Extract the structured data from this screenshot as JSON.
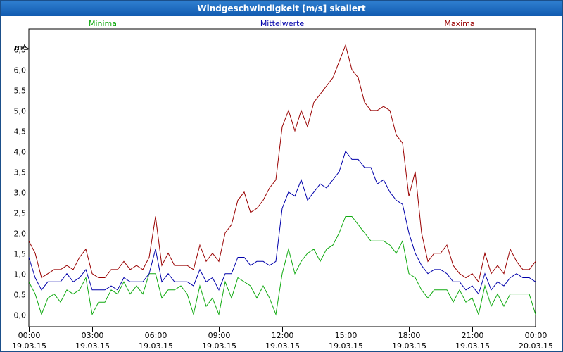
{
  "window": {
    "title": "Windgeschwindigkeit [m/s] skaliert"
  },
  "colors": {
    "min": "#11aa11",
    "mean": "#0000aa",
    "max": "#990000",
    "title_bg": "#1a66bf"
  },
  "chart_data": {
    "type": "line",
    "title": "Windgeschwindigkeit [m/s] skaliert",
    "ylabel": "m/s",
    "xlabel": "",
    "ylim": [
      -0.3,
      7.0
    ],
    "yticks": [
      "0,0",
      "0,5",
      "1,0",
      "1,5",
      "2,0",
      "2,5",
      "3,0",
      "3,5",
      "4,0",
      "4,5",
      "5,0",
      "5,5",
      "6,0",
      "6,5"
    ],
    "xlim_hours": [
      0,
      24
    ],
    "xticks": [
      {
        "time": "00:00",
        "date": "19.03.15"
      },
      {
        "time": "03:00",
        "date": "19.03.15"
      },
      {
        "time": "06:00",
        "date": "19.03.15"
      },
      {
        "time": "09:00",
        "date": "19.03.15"
      },
      {
        "time": "12:00",
        "date": "19.03.15"
      },
      {
        "time": "15:00",
        "date": "19.03.15"
      },
      {
        "time": "18:00",
        "date": "19.03.15"
      },
      {
        "time": "21:00",
        "date": "19.03.15"
      },
      {
        "time": "00:00",
        "date": "20.03.15"
      }
    ],
    "grid": true,
    "series": [
      {
        "name": "Minima",
        "key": "min",
        "points": [
          [
            0.0,
            0.8
          ],
          [
            0.3,
            0.5
          ],
          [
            0.6,
            0.0
          ],
          [
            0.9,
            0.4
          ],
          [
            1.2,
            0.5
          ],
          [
            1.5,
            0.3
          ],
          [
            1.8,
            0.6
          ],
          [
            2.1,
            0.5
          ],
          [
            2.4,
            0.6
          ],
          [
            2.7,
            0.9
          ],
          [
            3.0,
            0.0
          ],
          [
            3.3,
            0.3
          ],
          [
            3.6,
            0.3
          ],
          [
            3.9,
            0.6
          ],
          [
            4.2,
            0.5
          ],
          [
            4.5,
            0.8
          ],
          [
            4.8,
            0.5
          ],
          [
            5.1,
            0.7
          ],
          [
            5.4,
            0.5
          ],
          [
            5.7,
            1.0
          ],
          [
            6.0,
            1.0
          ],
          [
            6.3,
            0.4
          ],
          [
            6.6,
            0.6
          ],
          [
            6.9,
            0.6
          ],
          [
            7.2,
            0.7
          ],
          [
            7.5,
            0.5
          ],
          [
            7.8,
            0.0
          ],
          [
            8.1,
            0.7
          ],
          [
            8.4,
            0.2
          ],
          [
            8.7,
            0.4
          ],
          [
            9.0,
            0.0
          ],
          [
            9.3,
            0.8
          ],
          [
            9.6,
            0.4
          ],
          [
            9.9,
            0.9
          ],
          [
            10.2,
            0.8
          ],
          [
            10.5,
            0.7
          ],
          [
            10.8,
            0.4
          ],
          [
            11.1,
            0.7
          ],
          [
            11.4,
            0.4
          ],
          [
            11.7,
            0.0
          ],
          [
            12.0,
            1.0
          ],
          [
            12.3,
            1.6
          ],
          [
            12.6,
            1.0
          ],
          [
            12.9,
            1.3
          ],
          [
            13.2,
            1.5
          ],
          [
            13.5,
            1.6
          ],
          [
            13.8,
            1.3
          ],
          [
            14.1,
            1.6
          ],
          [
            14.4,
            1.7
          ],
          [
            14.7,
            2.0
          ],
          [
            15.0,
            2.4
          ],
          [
            15.3,
            2.4
          ],
          [
            15.6,
            2.2
          ],
          [
            15.9,
            2.0
          ],
          [
            16.2,
            1.8
          ],
          [
            16.5,
            1.8
          ],
          [
            16.8,
            1.8
          ],
          [
            17.1,
            1.7
          ],
          [
            17.4,
            1.5
          ],
          [
            17.7,
            1.8
          ],
          [
            18.0,
            1.0
          ],
          [
            18.3,
            0.9
          ],
          [
            18.6,
            0.6
          ],
          [
            18.9,
            0.4
          ],
          [
            19.2,
            0.6
          ],
          [
            19.5,
            0.6
          ],
          [
            19.8,
            0.6
          ],
          [
            20.1,
            0.3
          ],
          [
            20.4,
            0.6
          ],
          [
            20.7,
            0.3
          ],
          [
            21.0,
            0.4
          ],
          [
            21.3,
            0.0
          ],
          [
            21.6,
            0.7
          ],
          [
            21.9,
            0.2
          ],
          [
            22.2,
            0.5
          ],
          [
            22.5,
            0.2
          ],
          [
            22.8,
            0.5
          ],
          [
            23.1,
            0.5
          ],
          [
            23.4,
            0.5
          ],
          [
            23.7,
            0.5
          ],
          [
            24.0,
            0.0
          ]
        ]
      },
      {
        "name": "Mittelwerte",
        "key": "mean",
        "points": [
          [
            0.0,
            1.4
          ],
          [
            0.3,
            0.9
          ],
          [
            0.6,
            0.6
          ],
          [
            0.9,
            0.8
          ],
          [
            1.2,
            0.8
          ],
          [
            1.5,
            0.8
          ],
          [
            1.8,
            1.0
          ],
          [
            2.1,
            0.8
          ],
          [
            2.4,
            0.9
          ],
          [
            2.7,
            1.1
          ],
          [
            3.0,
            0.6
          ],
          [
            3.3,
            0.6
          ],
          [
            3.6,
            0.6
          ],
          [
            3.9,
            0.7
          ],
          [
            4.2,
            0.6
          ],
          [
            4.5,
            0.9
          ],
          [
            4.8,
            0.8
          ],
          [
            5.1,
            0.8
          ],
          [
            5.4,
            0.8
          ],
          [
            5.7,
            1.0
          ],
          [
            6.0,
            1.6
          ],
          [
            6.3,
            0.8
          ],
          [
            6.6,
            1.0
          ],
          [
            6.9,
            0.8
          ],
          [
            7.2,
            0.8
          ],
          [
            7.5,
            0.8
          ],
          [
            7.8,
            0.7
          ],
          [
            8.1,
            1.1
          ],
          [
            8.4,
            0.8
          ],
          [
            8.7,
            0.9
          ],
          [
            9.0,
            0.6
          ],
          [
            9.3,
            1.0
          ],
          [
            9.6,
            1.0
          ],
          [
            9.9,
            1.4
          ],
          [
            10.2,
            1.4
          ],
          [
            10.5,
            1.2
          ],
          [
            10.8,
            1.3
          ],
          [
            11.1,
            1.3
          ],
          [
            11.4,
            1.2
          ],
          [
            11.7,
            1.3
          ],
          [
            12.0,
            2.6
          ],
          [
            12.3,
            3.0
          ],
          [
            12.6,
            2.9
          ],
          [
            12.9,
            3.3
          ],
          [
            13.2,
            2.8
          ],
          [
            13.5,
            3.0
          ],
          [
            13.8,
            3.2
          ],
          [
            14.1,
            3.1
          ],
          [
            14.4,
            3.3
          ],
          [
            14.7,
            3.5
          ],
          [
            15.0,
            4.0
          ],
          [
            15.3,
            3.8
          ],
          [
            15.6,
            3.8
          ],
          [
            15.9,
            3.6
          ],
          [
            16.2,
            3.6
          ],
          [
            16.5,
            3.2
          ],
          [
            16.8,
            3.3
          ],
          [
            17.1,
            3.0
          ],
          [
            17.4,
            2.8
          ],
          [
            17.7,
            2.7
          ],
          [
            18.0,
            2.0
          ],
          [
            18.3,
            1.5
          ],
          [
            18.6,
            1.2
          ],
          [
            18.9,
            1.0
          ],
          [
            19.2,
            1.1
          ],
          [
            19.5,
            1.1
          ],
          [
            19.8,
            1.0
          ],
          [
            20.1,
            0.8
          ],
          [
            20.4,
            0.8
          ],
          [
            20.7,
            0.6
          ],
          [
            21.0,
            0.7
          ],
          [
            21.3,
            0.5
          ],
          [
            21.6,
            1.0
          ],
          [
            21.9,
            0.6
          ],
          [
            22.2,
            0.8
          ],
          [
            22.5,
            0.7
          ],
          [
            22.8,
            0.9
          ],
          [
            23.1,
            1.0
          ],
          [
            23.4,
            0.9
          ],
          [
            23.7,
            0.9
          ],
          [
            24.0,
            0.8
          ]
        ]
      },
      {
        "name": "Maxima",
        "key": "max",
        "points": [
          [
            0.0,
            1.8
          ],
          [
            0.3,
            1.5
          ],
          [
            0.6,
            0.9
          ],
          [
            0.9,
            1.0
          ],
          [
            1.2,
            1.1
          ],
          [
            1.5,
            1.1
          ],
          [
            1.8,
            1.2
          ],
          [
            2.1,
            1.1
          ],
          [
            2.4,
            1.4
          ],
          [
            2.7,
            1.6
          ],
          [
            3.0,
            1.0
          ],
          [
            3.3,
            0.9
          ],
          [
            3.6,
            0.9
          ],
          [
            3.9,
            1.1
          ],
          [
            4.2,
            1.1
          ],
          [
            4.5,
            1.3
          ],
          [
            4.8,
            1.1
          ],
          [
            5.1,
            1.2
          ],
          [
            5.4,
            1.1
          ],
          [
            5.7,
            1.4
          ],
          [
            6.0,
            2.4
          ],
          [
            6.3,
            1.2
          ],
          [
            6.6,
            1.5
          ],
          [
            6.9,
            1.2
          ],
          [
            7.2,
            1.2
          ],
          [
            7.5,
            1.2
          ],
          [
            7.8,
            1.1
          ],
          [
            8.1,
            1.7
          ],
          [
            8.4,
            1.3
          ],
          [
            8.7,
            1.5
          ],
          [
            9.0,
            1.3
          ],
          [
            9.3,
            2.0
          ],
          [
            9.6,
            2.2
          ],
          [
            9.9,
            2.8
          ],
          [
            10.2,
            3.0
          ],
          [
            10.5,
            2.5
          ],
          [
            10.8,
            2.6
          ],
          [
            11.1,
            2.8
          ],
          [
            11.4,
            3.1
          ],
          [
            11.7,
            3.3
          ],
          [
            12.0,
            4.6
          ],
          [
            12.3,
            5.0
          ],
          [
            12.6,
            4.5
          ],
          [
            12.9,
            5.0
          ],
          [
            13.2,
            4.6
          ],
          [
            13.5,
            5.2
          ],
          [
            13.8,
            5.4
          ],
          [
            14.1,
            5.6
          ],
          [
            14.4,
            5.8
          ],
          [
            14.7,
            6.2
          ],
          [
            15.0,
            6.6
          ],
          [
            15.3,
            6.0
          ],
          [
            15.6,
            5.8
          ],
          [
            15.9,
            5.2
          ],
          [
            16.2,
            5.0
          ],
          [
            16.5,
            5.0
          ],
          [
            16.8,
            5.1
          ],
          [
            17.1,
            5.0
          ],
          [
            17.4,
            4.4
          ],
          [
            17.7,
            4.2
          ],
          [
            18.0,
            2.9
          ],
          [
            18.3,
            3.5
          ],
          [
            18.6,
            2.0
          ],
          [
            18.9,
            1.3
          ],
          [
            19.2,
            1.5
          ],
          [
            19.5,
            1.5
          ],
          [
            19.8,
            1.7
          ],
          [
            20.1,
            1.2
          ],
          [
            20.4,
            1.0
          ],
          [
            20.7,
            0.9
          ],
          [
            21.0,
            1.0
          ],
          [
            21.3,
            0.8
          ],
          [
            21.6,
            1.5
          ],
          [
            21.9,
            1.0
          ],
          [
            22.2,
            1.2
          ],
          [
            22.5,
            1.0
          ],
          [
            22.8,
            1.6
          ],
          [
            23.1,
            1.3
          ],
          [
            23.4,
            1.1
          ],
          [
            23.7,
            1.1
          ],
          [
            24.0,
            1.3
          ]
        ]
      }
    ]
  }
}
